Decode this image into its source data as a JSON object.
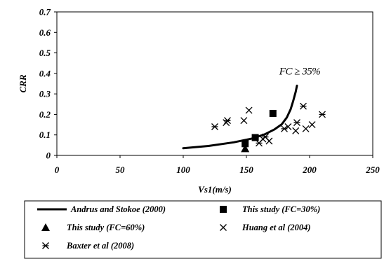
{
  "chart_data": {
    "type": "scatter",
    "xlabel": "Vs1(m/s)",
    "ylabel": "CRR",
    "xlim": [
      0,
      250
    ],
    "ylim": [
      0,
      0.7
    ],
    "x_ticks": [
      "0",
      "50",
      "100",
      "150",
      "200",
      "250"
    ],
    "y_ticks": [
      "0",
      "0.1",
      "0.2",
      "0.3",
      "0.4",
      "0.5",
      "0.6",
      "0.7"
    ],
    "grid": false,
    "legend_position": "bottom",
    "annotation": {
      "text": "FC ≥ 35%",
      "x": 176,
      "y": 0.395
    },
    "series": [
      {
        "name": "Andrus and Stokoe (2000)",
        "kind": "line",
        "marker": "none",
        "color": "#000000",
        "x": [
          100,
          120,
          140,
          155,
          165,
          172,
          178,
          182,
          185,
          187,
          189,
          190
        ],
        "y": [
          0.035,
          0.046,
          0.064,
          0.083,
          0.104,
          0.126,
          0.152,
          0.185,
          0.225,
          0.265,
          0.31,
          0.34
        ]
      },
      {
        "name": "This study (FC=30%)",
        "kind": "scatter",
        "marker": "square",
        "color": "#000000",
        "x": [
          149,
          157,
          171
        ],
        "y": [
          0.057,
          0.087,
          0.205
        ]
      },
      {
        "name": "This study (FC=60%)",
        "kind": "scatter",
        "marker": "triangle",
        "color": "#000000",
        "x": [
          149
        ],
        "y": [
          0.033
        ]
      },
      {
        "name": "Huang et al (2004)",
        "kind": "scatter",
        "marker": "x",
        "color": "#000000",
        "x": [
          134,
          148,
          152,
          163,
          168,
          183,
          189,
          197,
          202
        ],
        "y": [
          0.16,
          0.17,
          0.22,
          0.08,
          0.07,
          0.14,
          0.12,
          0.13,
          0.15
        ]
      },
      {
        "name": "Baxter et al (2008)",
        "kind": "scatter",
        "marker": "asterisk",
        "color": "#000000",
        "x": [
          125,
          135,
          160,
          165,
          180,
          190,
          195,
          210
        ],
        "y": [
          0.14,
          0.17,
          0.06,
          0.09,
          0.13,
          0.16,
          0.24,
          0.2
        ]
      }
    ]
  }
}
